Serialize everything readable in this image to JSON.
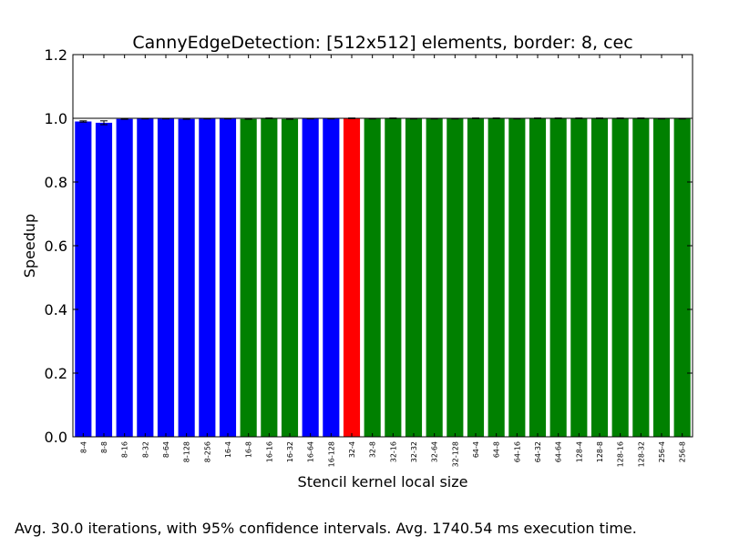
{
  "chart_data": {
    "type": "bar",
    "title": "CannyEdgeDetection: [512x512] elements, border: 8, cec",
    "xlabel": "Stencil kernel local size",
    "ylabel": "Speedup",
    "ylim": [
      0.0,
      1.2
    ],
    "yticks": [
      "0.0",
      "0.2",
      "0.4",
      "0.6",
      "0.8",
      "1.0",
      "1.2"
    ],
    "grid": false,
    "reference_line": 1.0,
    "colors": {
      "blue": "#0000ff",
      "green": "#008000",
      "red": "#ff0000"
    },
    "categories": [
      "8-4",
      "8-8",
      "8-16",
      "8-32",
      "8-64",
      "8-128",
      "8-256",
      "16-4",
      "16-8",
      "16-16",
      "16-32",
      "16-64",
      "16-128",
      "32-4",
      "32-8",
      "32-16",
      "32-32",
      "32-64",
      "32-128",
      "64-4",
      "64-8",
      "64-16",
      "64-32",
      "64-64",
      "128-4",
      "128-8",
      "128-16",
      "128-32",
      "256-4",
      "256-8"
    ],
    "values": [
      0.99,
      0.986,
      0.998,
      0.999,
      0.999,
      0.998,
      0.999,
      0.999,
      0.998,
      1.0,
      0.998,
      0.999,
      0.999,
      1.0,
      0.999,
      1.0,
      0.999,
      0.999,
      0.999,
      1.0,
      1.0,
      0.999,
      1.0,
      1.0,
      1.0,
      1.0,
      1.0,
      1.0,
      0.999,
      0.999
    ],
    "errors": [
      0.002,
      0.006,
      0.001,
      0.001,
      0.001,
      0.001,
      0.001,
      0.001,
      0.001,
      0.001,
      0.001,
      0.001,
      0.001,
      0.001,
      0.001,
      0.001,
      0.001,
      0.001,
      0.001,
      0.001,
      0.001,
      0.001,
      0.001,
      0.001,
      0.001,
      0.001,
      0.001,
      0.001,
      0.001,
      0.001
    ],
    "bar_colors": [
      "blue",
      "blue",
      "blue",
      "blue",
      "blue",
      "blue",
      "blue",
      "blue",
      "green",
      "green",
      "green",
      "blue",
      "blue",
      "red",
      "green",
      "green",
      "green",
      "green",
      "green",
      "green",
      "green",
      "green",
      "green",
      "green",
      "green",
      "green",
      "green",
      "green",
      "green",
      "green"
    ]
  },
  "caption": "Avg. 30.0 iterations, with 95% confidence intervals. Avg. 1740.54 ms execution time."
}
